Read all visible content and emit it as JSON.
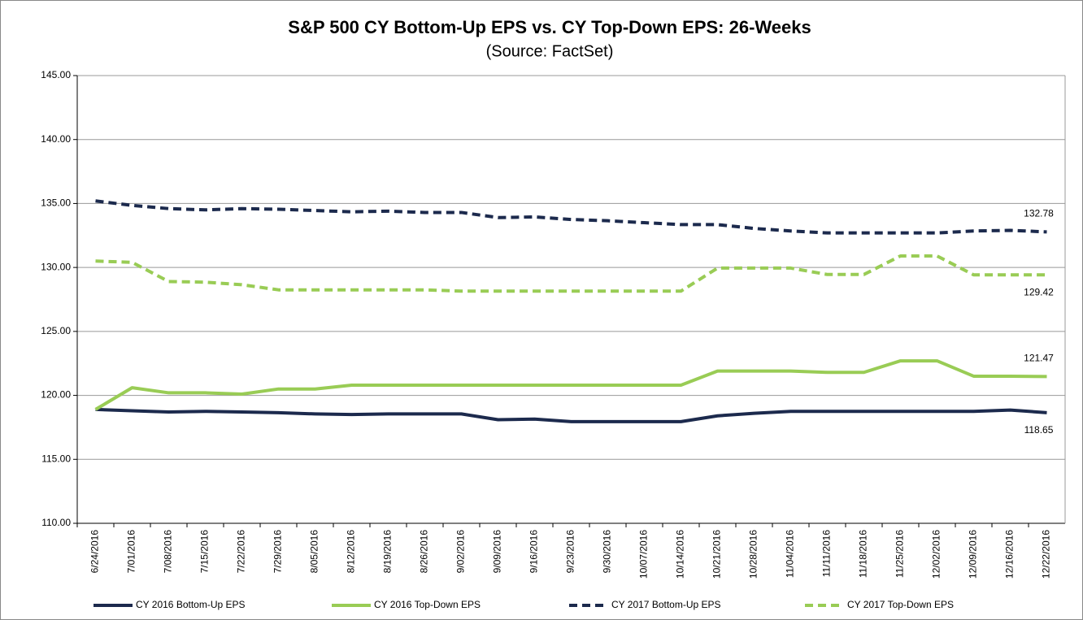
{
  "chart_data": {
    "type": "line",
    "title": "S&P 500 CY Bottom-Up EPS vs. CY Top-Down EPS: 26-Weeks",
    "subtitle": "(Source: FactSet)",
    "categories": [
      "6/24/2016",
      "7/01/2016",
      "7/08/2016",
      "7/15/2016",
      "7/22/2016",
      "7/29/2016",
      "8/05/2016",
      "8/12/2016",
      "8/19/2016",
      "8/26/2016",
      "9/02/2016",
      "9/09/2016",
      "9/16/2016",
      "9/23/2016",
      "9/30/2016",
      "10/07/2016",
      "10/14/2016",
      "10/21/2016",
      "10/28/2016",
      "11/04/2016",
      "11/11/2016",
      "11/18/2016",
      "11/25/2016",
      "12/02/2016",
      "12/09/2016",
      "12/16/2016",
      "12/22/2016"
    ],
    "series": [
      {
        "name": "CY 2016 Bottom-Up EPS",
        "color": "#1c2a4d",
        "style": "solid",
        "values": [
          118.9,
          118.8,
          118.7,
          118.75,
          118.7,
          118.65,
          118.55,
          118.5,
          118.55,
          118.55,
          118.55,
          118.1,
          118.15,
          117.95,
          117.95,
          117.95,
          117.95,
          118.4,
          118.6,
          118.75,
          118.75,
          118.75,
          118.75,
          118.75,
          118.75,
          118.85,
          118.65
        ]
      },
      {
        "name": "CY 2016 Top-Down EPS",
        "color": "#99cc55",
        "style": "solid",
        "values": [
          118.9,
          120.6,
          120.2,
          120.2,
          120.1,
          120.5,
          120.5,
          120.8,
          120.8,
          120.8,
          120.8,
          120.8,
          120.8,
          120.8,
          120.8,
          120.8,
          120.8,
          121.9,
          121.9,
          121.9,
          121.8,
          121.8,
          122.7,
          122.7,
          121.5,
          121.5,
          121.47
        ]
      },
      {
        "name": "CY 2017 Bottom-Up EPS",
        "color": "#1c2a4d",
        "style": "dashed",
        "values": [
          135.2,
          134.85,
          134.6,
          134.5,
          134.6,
          134.55,
          134.45,
          134.35,
          134.4,
          134.3,
          134.3,
          133.9,
          133.95,
          133.75,
          133.65,
          133.5,
          133.35,
          133.35,
          133.05,
          132.85,
          132.7,
          132.7,
          132.7,
          132.7,
          132.85,
          132.9,
          132.78
        ]
      },
      {
        "name": "CY 2017 Top-Down EPS",
        "color": "#99cc55",
        "style": "dashed",
        "values": [
          130.5,
          130.4,
          128.9,
          128.85,
          128.65,
          128.25,
          128.25,
          128.25,
          128.25,
          128.25,
          128.15,
          128.15,
          128.15,
          128.15,
          128.15,
          128.15,
          128.15,
          129.95,
          129.95,
          129.95,
          129.45,
          129.45,
          130.9,
          130.9,
          129.42,
          129.42,
          129.42
        ]
      }
    ],
    "ylim": [
      110,
      145
    ],
    "yticks": [
      {
        "value": 110,
        "label": "110.00"
      },
      {
        "value": 115,
        "label": "115.00"
      },
      {
        "value": 120,
        "label": "120.00"
      },
      {
        "value": 125,
        "label": "125.00"
      },
      {
        "value": 130,
        "label": "130.00"
      },
      {
        "value": 135,
        "label": "135.00"
      },
      {
        "value": 140,
        "label": "140.00"
      },
      {
        "value": 145,
        "label": "145.00"
      }
    ],
    "grid": true,
    "legend": "bottom"
  }
}
